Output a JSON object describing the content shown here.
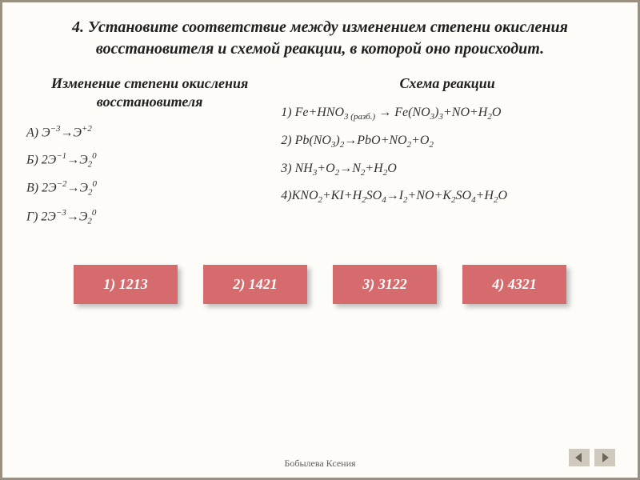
{
  "title": "4. Установите соответствие между изменением степени окисления восстановителя и схемой реакции, в которой оно происходит.",
  "left": {
    "heading": "Изменение степени окисления восстановителя",
    "items": [
      "А) Э<sup>−3</sup>→Э<sup>+2</sup>",
      "Б) 2Э<sup>−1</sup>→Э<sub>2</sub><sup>0</sup>",
      "В) 2Э<sup>−2</sup>→Э<sub>2</sub><sup>0</sup>",
      "Г) 2Э<sup>−3</sup>→Э<sub>2</sub><sup>0</sup>"
    ]
  },
  "right": {
    "heading": "Схема реакции",
    "items": [
      "1) Fe+HNO<sub>3 (разб.)</sub> → Fe(NO<sub>3</sub>)<sub>3</sub>+NO+H<sub>2</sub>O",
      "2) Pb(NO<sub>3</sub>)<sub>2</sub>→PbO+NO<sub>2</sub>+O<sub>2</sub>",
      "3) NH<sub>3</sub>+O<sub>2</sub>→N<sub>2</sub>+H<sub>2</sub>O",
      "4)KNO<sub>2</sub>+KI+H<sub>2</sub>SO<sub>4</sub>→I<sub>2</sub>+NO+K<sub>2</sub>SO<sub>4</sub>+H<sub>2</sub>O"
    ]
  },
  "options": [
    "1) 1213",
    "2) 1421",
    "3) 3122",
    "4) 4321"
  ],
  "footer": "Бобылева Ксения",
  "style": {
    "option_bg": "#d66b6d",
    "option_fg": "#ffffff",
    "border_color": "#9a9082",
    "nav_bg": "#d0cabe",
    "nav_arrow": "#6d6556"
  }
}
